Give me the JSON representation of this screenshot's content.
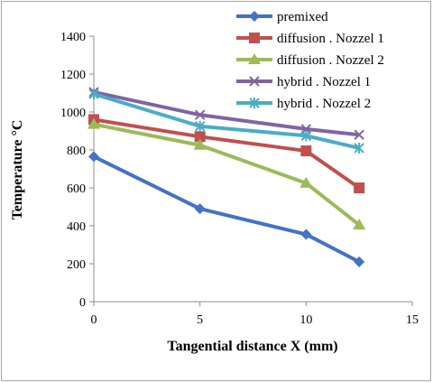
{
  "chart_data": {
    "type": "line",
    "title": "",
    "xlabel": "Tangential distance  X (mm)",
    "ylabel": "Temperature  °C",
    "xlim": [
      0,
      15
    ],
    "ylim": [
      0,
      1400
    ],
    "xticks": [
      "0",
      "5",
      "10",
      "15"
    ],
    "yticks": [
      "0",
      "200",
      "400",
      "600",
      "800",
      "1000",
      "1200",
      "1400"
    ],
    "grid": false,
    "legend_position": "top-right",
    "series": [
      {
        "name": "premixed",
        "color": "#4472c4",
        "marker": "diamond",
        "x": [
          0,
          5,
          10,
          12.5
        ],
        "y": [
          765,
          490,
          355,
          210
        ]
      },
      {
        "name": "diffusion . Nozzel 1",
        "color": "#c0504d",
        "marker": "square",
        "x": [
          0,
          5,
          10,
          12.5
        ],
        "y": [
          960,
          870,
          795,
          600
        ]
      },
      {
        "name": "diffusion . Nozzel 2",
        "color": "#9bbb59",
        "marker": "triangle",
        "x": [
          0,
          5,
          10,
          12.5
        ],
        "y": [
          935,
          825,
          625,
          405
        ]
      },
      {
        "name": "hybrid . Nozzel 1",
        "color": "#8064a2",
        "marker": "x",
        "x": [
          0,
          5,
          10,
          12.5
        ],
        "y": [
          1105,
          985,
          910,
          880
        ]
      },
      {
        "name": "hybrid . Nozzel 2",
        "color": "#4bacc6",
        "marker": "star",
        "x": [
          0,
          5,
          10,
          12.5
        ],
        "y": [
          1095,
          925,
          875,
          810
        ]
      }
    ]
  }
}
